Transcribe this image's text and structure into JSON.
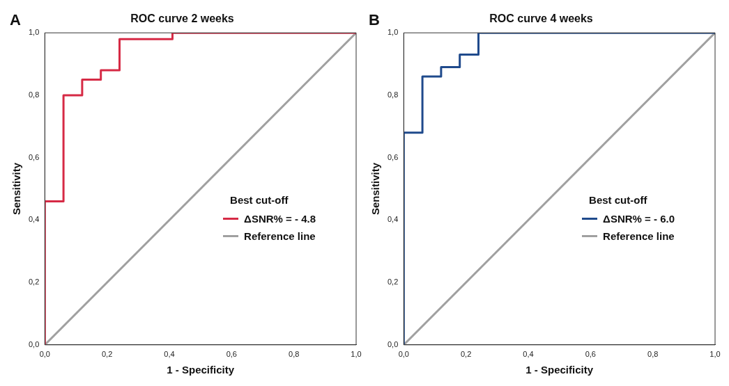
{
  "chart_data": [
    {
      "type": "line",
      "title": "ROC curve 2 weeks",
      "xlabel": "1 - Specificity",
      "ylabel": "Sensitivity",
      "annotations": [
        "A"
      ],
      "legend_title": "Best cut-off",
      "legend": "bottom right",
      "grid": false,
      "marker": "none",
      "line_style": "solid",
      "xlim": [
        0,
        1
      ],
      "ylim": [
        0,
        1
      ],
      "xticks": [
        {
          "value": 0,
          "label": "0,0"
        },
        {
          "value": 0.2,
          "label": "0,2"
        },
        {
          "value": 0.4,
          "label": "0,4"
        },
        {
          "value": 0.6,
          "label": "0,6"
        },
        {
          "value": 0.8,
          "label": "0,8"
        },
        {
          "value": 1,
          "label": "1,0"
        }
      ],
      "yticks": [
        {
          "value": 0,
          "label": "0,0"
        },
        {
          "value": 0.2,
          "label": "0,2"
        },
        {
          "value": 0.4,
          "label": "0,4"
        },
        {
          "value": 0.6,
          "label": "0,6"
        },
        {
          "value": 0.8,
          "label": "0,8"
        },
        {
          "value": 1,
          "label": "1,0"
        }
      ],
      "series": [
        {
          "name": "ΔSNR% = - 4.8",
          "color": "#d62a45",
          "x": [
            0,
            0,
            0.06,
            0.06,
            0.12,
            0.12,
            0.18,
            0.18,
            0.24,
            0.24,
            0.41,
            0.41,
            1
          ],
          "values": [
            0,
            0.46,
            0.46,
            0.8,
            0.8,
            0.85,
            0.85,
            0.88,
            0.88,
            0.98,
            0.98,
            1,
            1
          ]
        },
        {
          "name": "Reference line",
          "color": "#a0a0a0",
          "x": [
            0,
            1
          ],
          "values": [
            0,
            1
          ]
        }
      ]
    },
    {
      "type": "line",
      "title": "ROC curve 4 weeks",
      "xlabel": "1 - Specificity",
      "ylabel": "Sensitivity",
      "annotations": [
        "B"
      ],
      "legend_title": "Best cut-off",
      "legend": "bottom right",
      "grid": false,
      "marker": "none",
      "line_style": "solid",
      "xlim": [
        0,
        1
      ],
      "ylim": [
        0,
        1
      ],
      "xticks": [
        {
          "value": 0,
          "label": "0,0"
        },
        {
          "value": 0.2,
          "label": "0,2"
        },
        {
          "value": 0.4,
          "label": "0,4"
        },
        {
          "value": 0.6,
          "label": "0,6"
        },
        {
          "value": 0.8,
          "label": "0,8"
        },
        {
          "value": 1,
          "label": "1,0"
        }
      ],
      "yticks": [
        {
          "value": 0,
          "label": "0,0"
        },
        {
          "value": 0.2,
          "label": "0,2"
        },
        {
          "value": 0.4,
          "label": "0,4"
        },
        {
          "value": 0.6,
          "label": "0,6"
        },
        {
          "value": 0.8,
          "label": "0,8"
        },
        {
          "value": 1,
          "label": "1,0"
        }
      ],
      "series": [
        {
          "name": "ΔSNR% = - 6.0",
          "color": "#1f4a8c",
          "x": [
            0,
            0,
            0.06,
            0.06,
            0.12,
            0.12,
            0.18,
            0.18,
            0.24,
            0.24,
            1
          ],
          "values": [
            0,
            0.68,
            0.68,
            0.86,
            0.86,
            0.89,
            0.89,
            0.93,
            0.93,
            1,
            1
          ]
        },
        {
          "name": "Reference line",
          "color": "#a0a0a0",
          "x": [
            0,
            1
          ],
          "values": [
            0,
            1
          ]
        }
      ]
    }
  ]
}
